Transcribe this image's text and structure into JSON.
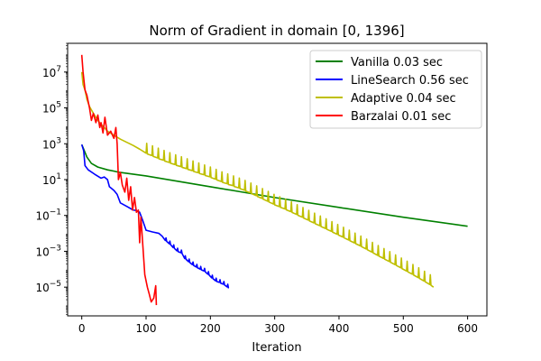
{
  "chart_data": {
    "type": "line",
    "title": "Norm of Gradient in domain [0, 1396]",
    "xlabel": "Iteration",
    "ylabel": "",
    "y_scale": "log",
    "xlim": [
      -22,
      630
    ],
    "ylim": [
      2.5e-07,
      400000000.0
    ],
    "x_ticks": [
      0,
      100,
      200,
      300,
      400,
      500,
      600
    ],
    "x_tick_labels": [
      "0",
      "100",
      "200",
      "300",
      "400",
      "500",
      "600"
    ],
    "y_ticks": [
      1e-05,
      0.001,
      0.1,
      10.0,
      1000.0,
      100000.0,
      10000000.0
    ],
    "y_tick_labels": [
      {
        "base": "10",
        "exp": "−5"
      },
      {
        "base": "10",
        "exp": "−3"
      },
      {
        "base": "10",
        "exp": "−1"
      },
      {
        "base": "10",
        "exp": "1"
      },
      {
        "base": "10",
        "exp": "3"
      },
      {
        "base": "10",
        "exp": "5"
      },
      {
        "base": "10",
        "exp": "7"
      }
    ],
    "grid": false,
    "legend_position": "top-right",
    "series": [
      {
        "name": "Vanilla 0.03 sec",
        "color": "#008000",
        "points": [
          [
            0,
            900
          ],
          [
            3,
            500
          ],
          [
            8,
            180
          ],
          [
            15,
            80
          ],
          [
            25,
            50
          ],
          [
            40,
            35
          ],
          [
            60,
            25
          ],
          [
            100,
            16
          ],
          [
            150,
            8
          ],
          [
            200,
            4
          ],
          [
            250,
            2
          ],
          [
            300,
            1
          ],
          [
            400,
            0.28
          ],
          [
            500,
            0.08
          ],
          [
            600,
            0.025
          ]
        ]
      },
      {
        "name": "LineSearch 0.56 sec",
        "color": "#0000ff",
        "points": [
          [
            0,
            900
          ],
          [
            3,
            400
          ],
          [
            5,
            60
          ],
          [
            10,
            35
          ],
          [
            20,
            20
          ],
          [
            30,
            12
          ],
          [
            35,
            14
          ],
          [
            40,
            10
          ],
          [
            43,
            4
          ],
          [
            50,
            2.5
          ],
          [
            55,
            1.5
          ],
          [
            60,
            0.5
          ],
          [
            70,
            0.32
          ],
          [
            80,
            0.2
          ],
          [
            85,
            0.19
          ],
          [
            90,
            0.15
          ],
          [
            95,
            0.05
          ],
          [
            100,
            0.015
          ],
          [
            110,
            0.012
          ],
          [
            120,
            0.01
          ],
          [
            125,
            0.007
          ],
          [
            130,
            0.004
          ],
          [
            140,
            0.002
          ],
          [
            145,
            0.0012
          ],
          [
            155,
            0.0008
          ],
          [
            160,
            0.0004
          ],
          [
            170,
            0.0002
          ],
          [
            180,
            0.00012
          ],
          [
            190,
            8e-05
          ],
          [
            200,
            4e-05
          ],
          [
            205,
            2.5e-05
          ],
          [
            215,
            1.8e-05
          ],
          [
            225,
            1.2e-05
          ],
          [
            227,
            9e-06
          ]
        ]
      },
      {
        "name": "Adaptive 0.04 sec",
        "color": "#bfbf00",
        "points": [
          [
            0,
            10000000.0
          ],
          [
            2,
            2000000.0
          ],
          [
            5,
            1000000.0
          ],
          [
            8,
            300000.0
          ],
          [
            12,
            120000.0
          ],
          [
            18,
            50000.0
          ],
          [
            25,
            20000.0
          ],
          [
            30,
            12000.0
          ],
          [
            35,
            8000
          ],
          [
            40,
            5000
          ],
          [
            50,
            3000
          ],
          [
            60,
            1800
          ],
          [
            70,
            1200
          ],
          [
            80,
            800
          ],
          [
            90,
            500
          ],
          [
            100,
            300
          ],
          [
            120,
            150
          ],
          [
            140,
            80
          ],
          [
            160,
            45
          ],
          [
            180,
            25
          ],
          [
            200,
            14
          ],
          [
            220,
            7
          ],
          [
            240,
            4
          ],
          [
            260,
            2
          ],
          [
            280,
            0.9
          ],
          [
            300,
            0.4
          ],
          [
            320,
            0.2
          ],
          [
            340,
            0.09
          ],
          [
            360,
            0.04
          ],
          [
            380,
            0.018
          ],
          [
            400,
            0.008
          ],
          [
            420,
            0.0035
          ],
          [
            440,
            0.0015
          ],
          [
            460,
            0.0006
          ],
          [
            480,
            0.00025
          ],
          [
            500,
            0.0001
          ],
          [
            520,
            4e-05
          ],
          [
            540,
            1.5e-05
          ],
          [
            547,
            1e-05
          ]
        ]
      },
      {
        "name": "Barzalai 0.01 sec",
        "color": "#ff0000",
        "points": [
          [
            0,
            90000000.0
          ],
          [
            2,
            10000000.0
          ],
          [
            5,
            1000000.0
          ],
          [
            8,
            500000.0
          ],
          [
            12,
            100000.0
          ],
          [
            15,
            20000.0
          ],
          [
            18,
            50000.0
          ],
          [
            22,
            15000.0
          ],
          [
            25,
            40000.0
          ],
          [
            28,
            8000
          ],
          [
            30,
            15000.0
          ],
          [
            33,
            4000
          ],
          [
            36,
            30000.0
          ],
          [
            40,
            3000
          ],
          [
            45,
            5000
          ],
          [
            50,
            2000
          ],
          [
            53,
            8000
          ],
          [
            55,
            1000.0
          ],
          [
            57,
            10
          ],
          [
            60,
            25
          ],
          [
            63,
            5
          ],
          [
            67,
            2
          ],
          [
            70,
            12
          ],
          [
            73,
            0.7
          ],
          [
            76,
            4
          ],
          [
            79,
            0.2
          ],
          [
            82,
            1
          ],
          [
            85,
            0.15
          ],
          [
            88,
            0.2
          ],
          [
            90,
            0.003
          ],
          [
            92,
            0.08
          ],
          [
            95,
            0.002
          ],
          [
            98,
            5e-05
          ],
          [
            102,
            1e-05
          ],
          [
            105,
            4e-06
          ],
          [
            108,
            1.5e-06
          ],
          [
            112,
            2.5e-06
          ],
          [
            115,
            1.2e-05
          ],
          [
            116,
            1e-06
          ]
        ]
      }
    ],
    "ripple_pattern": {
      "Adaptive 0.04 sec": {
        "start": 100,
        "end": 546,
        "period": 9,
        "spike_factor": 3.5
      },
      "LineSearch 0.56 sec": {
        "start": 130,
        "end": 226,
        "period": 6,
        "spike_factor": 1.4
      }
    }
  }
}
